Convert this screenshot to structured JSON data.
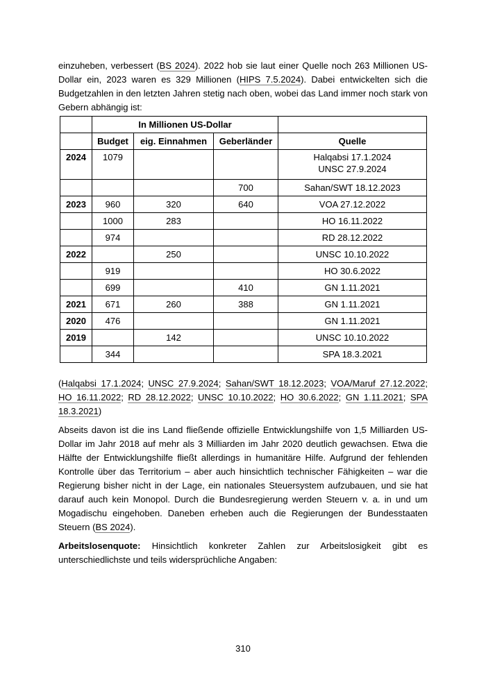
{
  "intro": {
    "segments": [
      {
        "t": "einzuheben, verbessert (",
        "link": false
      },
      {
        "t": "BS 2024",
        "link": true
      },
      {
        "t": "). 2022 hob sie laut einer Quelle noch 263 Millionen US-Dollar ein, 2023 waren es 329 Millionen (",
        "link": false
      },
      {
        "t": "HIPS 7.5.2024",
        "link": true
      },
      {
        "t": "). Dabei entwickelten sich die Budgetzahlen in den letzten Jahren stetig nach oben, wobei das Land immer noch stark von Gebern abhängig ist:",
        "link": false
      }
    ]
  },
  "budget_table": {
    "group_header": "In Millionen US-Dollar",
    "col_headers": {
      "year": "",
      "budget": "Budget",
      "einnahmen": "eig. Einnahmen",
      "geberlaender": "Geberländer",
      "quelle": "Quelle"
    },
    "rows": [
      {
        "year": "2024",
        "budget": "1079",
        "einnahmen": "",
        "geberlaender": "",
        "quelle": [
          "Halqabsi 17.1.2024",
          "UNSC 27.9.2024"
        ]
      },
      {
        "year": "",
        "budget": "",
        "einnahmen": "",
        "geberlaender": "700",
        "quelle": [
          "Sahan/SWT 18.12.2023"
        ]
      },
      {
        "year": "2023",
        "budget": "960",
        "einnahmen": "320",
        "geberlaender": "640",
        "quelle": [
          "VOA 27.12.2022"
        ]
      },
      {
        "year": "",
        "budget": "1000",
        "einnahmen": "283",
        "geberlaender": "",
        "quelle": [
          "HO 16.11.2022"
        ]
      },
      {
        "year": "",
        "budget": "974",
        "einnahmen": "",
        "geberlaender": "",
        "quelle": [
          "RD 28.12.2022"
        ]
      },
      {
        "year": "2022",
        "budget": "",
        "einnahmen": "250",
        "geberlaender": "",
        "quelle": [
          "UNSC 10.10.2022"
        ]
      },
      {
        "year": "",
        "budget": "919",
        "einnahmen": "",
        "geberlaender": "",
        "quelle": [
          "HO 30.6.2022"
        ]
      },
      {
        "year": "",
        "budget": "699",
        "einnahmen": "",
        "geberlaender": "410",
        "quelle": [
          "GN 1.11.2021"
        ]
      },
      {
        "year": "2021",
        "budget": "671",
        "einnahmen": "260",
        "geberlaender": "388",
        "quelle": [
          "GN 1.11.2021"
        ]
      },
      {
        "year": "2020",
        "budget": "476",
        "einnahmen": "",
        "geberlaender": "",
        "quelle": [
          "GN 1.11.2021"
        ]
      },
      {
        "year": "2019",
        "budget": "",
        "einnahmen": "142",
        "geberlaender": "",
        "quelle": [
          "UNSC 10.10.2022"
        ]
      },
      {
        "year": "",
        "budget": "344",
        "einnahmen": "",
        "geberlaender": "",
        "quelle": [
          "SPA 18.3.2021"
        ]
      }
    ]
  },
  "citation": {
    "segments": [
      {
        "t": "(",
        "link": false
      },
      {
        "t": "Halqabsi 17.1.2024",
        "link": true
      },
      {
        "t": "; ",
        "link": false
      },
      {
        "t": "UNSC 27.9.2024",
        "link": true
      },
      {
        "t": "; ",
        "link": false
      },
      {
        "t": "Sahan/SWT 18.12.2023",
        "link": true
      },
      {
        "t": "; ",
        "link": false
      },
      {
        "t": "VOA/Maruf 27.12.2022",
        "link": true
      },
      {
        "t": "; ",
        "link": false
      },
      {
        "t": "HO 16.11.2022",
        "link": true
      },
      {
        "t": "; ",
        "link": false
      },
      {
        "t": "RD 28.12.2022",
        "link": true
      },
      {
        "t": "; ",
        "link": false
      },
      {
        "t": "UNSC 10.10.2022",
        "link": true
      },
      {
        "t": "; ",
        "link": false
      },
      {
        "t": "HO 30.6.2022",
        "link": true
      },
      {
        "t": "; ",
        "link": false
      },
      {
        "t": "GN 1.11.2021",
        "link": true
      },
      {
        "t": "; ",
        "link": false
      },
      {
        "t": "SPA 18.3.2021",
        "link": true
      },
      {
        "t": ")",
        "link": false
      }
    ]
  },
  "development_aid": {
    "segments": [
      {
        "t": "Abseits davon ist die ins Land fließende offizielle Entwicklungshilfe von 1,5 Milliarden US-Dollar im Jahr 2018 auf mehr als 3 Milliarden im Jahr 2020 deutlich gewachsen. Etwa die Hälfte der Entwicklungshilfe fließt allerdings in humanitäre Hilfe. Aufgrund der fehlenden Kontrolle über das Territorium – aber auch hinsichtlich technischer Fähigkeiten – war die Regierung bisher nicht in der Lage, ein nationales Steuersystem aufzubauen, und sie hat darauf auch kein Monopol. Durch die Bundesregierung werden Steuern v. a. in und um Mogadischu eingehoben. Daneben erheben auch die Regierungen der Bundesstaaten Steuern (",
        "link": false
      },
      {
        "t": "BS 2024",
        "link": true
      },
      {
        "t": ").",
        "link": false
      }
    ]
  },
  "unemployment": {
    "lead": "Arbeitslosenquote:",
    "rest": " Hinsichtlich konkreter Zahlen zur Arbeitslosigkeit gibt es unterschiedlichste und teils widersprüchliche Angaben:"
  },
  "footer": {
    "page_number": "310"
  }
}
